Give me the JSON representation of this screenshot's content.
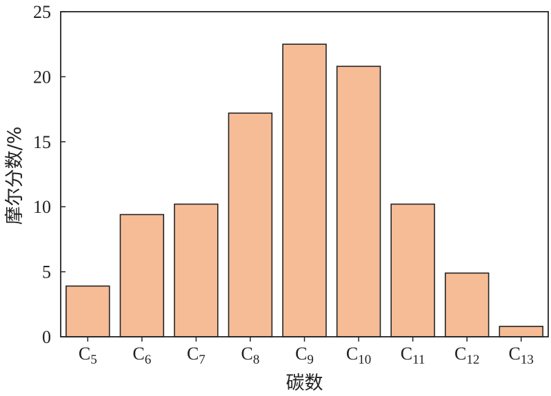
{
  "chart_data": {
    "type": "bar",
    "categories": [
      {
        "base": "C",
        "sub": "5"
      },
      {
        "base": "C",
        "sub": "6"
      },
      {
        "base": "C",
        "sub": "7"
      },
      {
        "base": "C",
        "sub": "8"
      },
      {
        "base": "C",
        "sub": "9"
      },
      {
        "base": "C",
        "sub": "10"
      },
      {
        "base": "C",
        "sub": "11"
      },
      {
        "base": "C",
        "sub": "12"
      },
      {
        "base": "C",
        "sub": "13"
      }
    ],
    "values": [
      3.9,
      9.4,
      10.2,
      17.2,
      22.5,
      20.8,
      10.2,
      4.9,
      0.8
    ],
    "xlabel": "碳数",
    "ylabel": "摩尔分数/%",
    "ylim": [
      0,
      25
    ],
    "yticks": [
      0,
      5,
      10,
      15,
      20,
      25
    ],
    "grid": false,
    "bar_color": "#F6BC96",
    "bar_edge_color": "#222222"
  }
}
